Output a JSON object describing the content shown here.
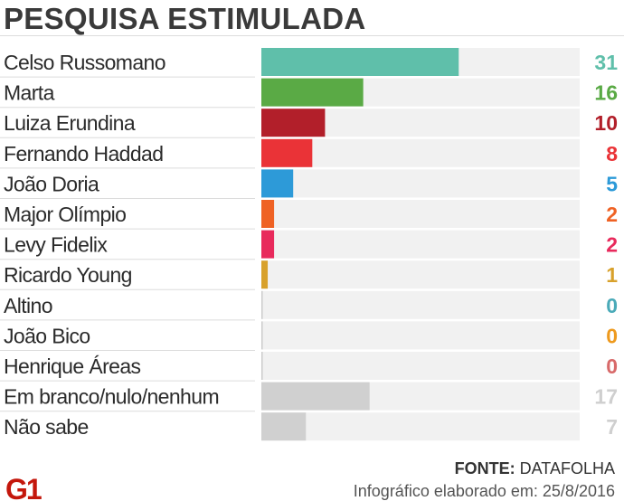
{
  "title": "PESQUISA ESTIMULADA",
  "source_label": "FONTE:",
  "source_value": "DATAFOLHA",
  "credit": "Infográfico elaborado em: 25/8/2016",
  "logo_text": "G1",
  "colors": {
    "logo": "#c4170c",
    "track": "#f1f1f1"
  },
  "chart_data": {
    "type": "bar",
    "orientation": "horizontal",
    "title": "PESQUISA ESTIMULADA",
    "categories": [
      "Celso Russomano",
      "Marta",
      "Luiza Erundina",
      "Fernando Haddad",
      "João Doria",
      "Major Olímpio",
      "Levy Fidelix",
      "Ricardo Young",
      "Altino",
      "João Bico",
      "Henrique Áreas",
      "Em branco/nulo/nenhum",
      "Não sabe"
    ],
    "values": [
      31,
      16,
      10,
      8,
      5,
      2,
      2,
      1,
      0,
      0,
      0,
      17,
      7
    ],
    "bar_colors": [
      "#5fbfaa",
      "#5aaa45",
      "#b21f2a",
      "#ea3337",
      "#2d9ad8",
      "#ef6224",
      "#e82a5c",
      "#d8a12b",
      "#cccccc",
      "#cccccc",
      "#cccccc",
      "#d0d0d0",
      "#d0d0d0"
    ],
    "value_colors": [
      "#5fbfaa",
      "#5aaa45",
      "#b21f2a",
      "#ea3337",
      "#2d9ad8",
      "#ef6224",
      "#e82a5c",
      "#d8a12b",
      "#4aaab8",
      "#ee9a1e",
      "#d86a6a",
      "#cfcfcf",
      "#cfcfcf"
    ],
    "xlim": [
      0,
      50
    ],
    "grid": false,
    "legend": "none"
  }
}
